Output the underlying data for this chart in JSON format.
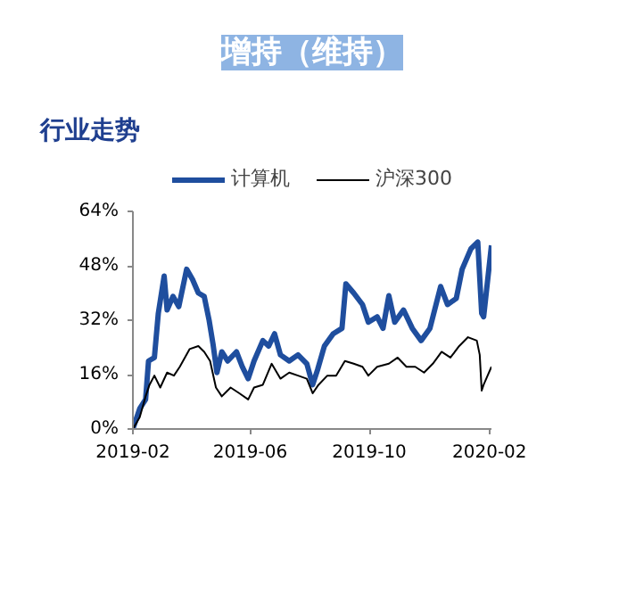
{
  "chart_data": {
    "type": "line",
    "title": "增持（维持）",
    "subtitle": "行业走势",
    "xlim": [
      "2019-02-01",
      "2020-02-03"
    ],
    "xticks": [
      "2019-02",
      "2019-06",
      "2019-10",
      "2020-02"
    ],
    "ylim": [
      0,
      64
    ],
    "yticks": [
      {
        "value": 0,
        "label": "0%"
      },
      {
        "value": 16,
        "label": "16%"
      },
      {
        "value": 32,
        "label": "32%"
      },
      {
        "value": 48,
        "label": "48%"
      },
      {
        "value": 64,
        "label": "64%"
      }
    ],
    "grid": false,
    "legend": "top",
    "series": [
      {
        "name": "计算机",
        "color": "#1f4e9e",
        "x": [
          "2019-02-01",
          "2019-02-08",
          "2019-02-14",
          "2019-02-17",
          "2019-02-23",
          "2019-02-27",
          "2019-03-05",
          "2019-03-08",
          "2019-03-14",
          "2019-03-20",
          "2019-03-28",
          "2019-04-03",
          "2019-04-09",
          "2019-04-15",
          "2019-04-20",
          "2019-04-24",
          "2019-04-28",
          "2019-05-03",
          "2019-05-09",
          "2019-05-18",
          "2019-05-24",
          "2019-05-30",
          "2019-06-05",
          "2019-06-14",
          "2019-06-20",
          "2019-06-26",
          "2019-07-02",
          "2019-07-11",
          "2019-07-20",
          "2019-07-29",
          "2019-08-04",
          "2019-08-09",
          "2019-08-16",
          "2019-08-25",
          "2019-09-03",
          "2019-09-07",
          "2019-09-15",
          "2019-09-24",
          "2019-09-30",
          "2019-10-09",
          "2019-10-15",
          "2019-10-21",
          "2019-10-27",
          "2019-11-05",
          "2019-11-14",
          "2019-11-23",
          "2019-12-02",
          "2019-12-13",
          "2019-12-20",
          "2019-12-29",
          "2020-01-04",
          "2020-01-13",
          "2020-01-20",
          "2020-01-24",
          "2020-01-26",
          "2020-02-03"
        ],
        "values": [
          0,
          6,
          8.7,
          20,
          21,
          34,
          45,
          35,
          39,
          36,
          47,
          44,
          40,
          39,
          32,
          25,
          16.6,
          22.7,
          20,
          22.7,
          18.3,
          14.8,
          20,
          26,
          24.4,
          28,
          21.8,
          20,
          21.8,
          19.2,
          13,
          17.4,
          24.4,
          28,
          29.6,
          42.7,
          40,
          36.6,
          31.4,
          33,
          29.6,
          39.2,
          31.4,
          35,
          29.6,
          26,
          29.6,
          41.9,
          36.6,
          38.4,
          47,
          53,
          55,
          34,
          33,
          54
        ]
      },
      {
        "name": "沪深300",
        "color": "#000000",
        "x": [
          "2019-02-01",
          "2019-02-08",
          "2019-02-14",
          "2019-02-18",
          "2019-02-23",
          "2019-03-01",
          "2019-03-08",
          "2019-03-15",
          "2019-03-21",
          "2019-03-31",
          "2019-04-09",
          "2019-04-15",
          "2019-04-21",
          "2019-04-27",
          "2019-05-03",
          "2019-05-12",
          "2019-05-21",
          "2019-05-30",
          "2019-06-05",
          "2019-06-14",
          "2019-06-23",
          "2019-07-02",
          "2019-07-11",
          "2019-07-20",
          "2019-07-29",
          "2019-08-04",
          "2019-08-10",
          "2019-08-19",
          "2019-08-28",
          "2019-09-06",
          "2019-09-15",
          "2019-09-24",
          "2019-09-30",
          "2019-10-09",
          "2019-10-21",
          "2019-10-30",
          "2019-11-08",
          "2019-11-17",
          "2019-11-26",
          "2019-12-05",
          "2019-12-14",
          "2019-12-23",
          "2020-01-01",
          "2020-01-10",
          "2020-01-19",
          "2020-01-22",
          "2020-01-24",
          "2020-01-26",
          "2020-02-03"
        ],
        "values": [
          0,
          3.5,
          9.6,
          13,
          15.7,
          12.2,
          16.6,
          15.7,
          18.3,
          23.5,
          24.4,
          22.7,
          20,
          12.2,
          9.6,
          12.2,
          10.5,
          8.7,
          12.2,
          13,
          19.2,
          14.8,
          16.6,
          15.7,
          14.8,
          10.5,
          13,
          15.7,
          15.7,
          20,
          19.2,
          18.3,
          15.7,
          18.3,
          19.2,
          21,
          18.3,
          18.3,
          16.6,
          19.2,
          22.7,
          21,
          24.4,
          27,
          26,
          21.8,
          11.3,
          13,
          18.3
        ]
      }
    ]
  }
}
